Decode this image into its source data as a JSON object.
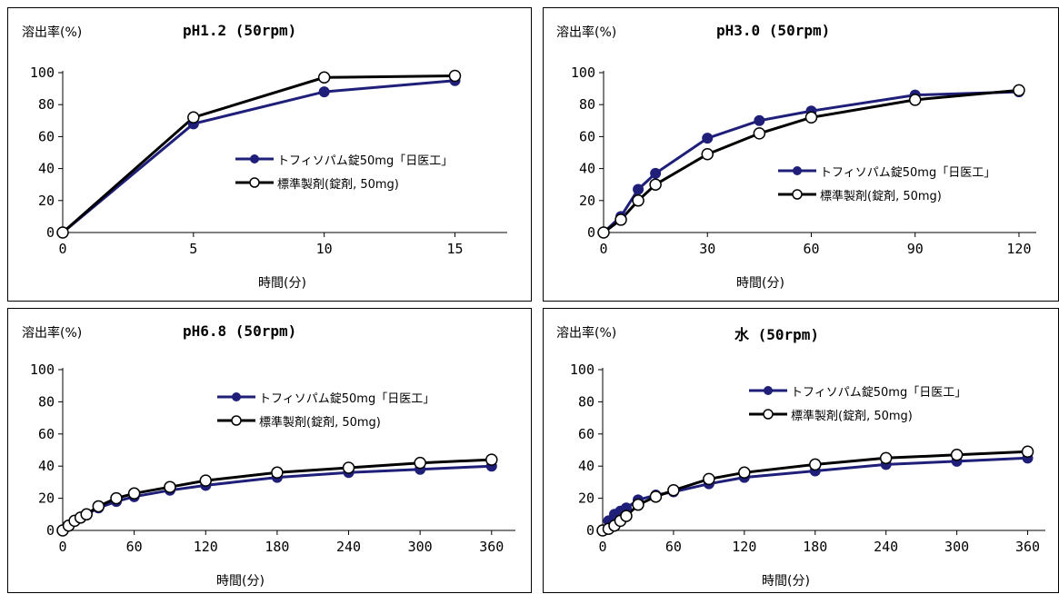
{
  "chart_data": [
    {
      "type": "line",
      "title": "pH1.2 (50rpm)",
      "ylabel": "溶出率(%)",
      "xlabel": "時間(分)",
      "xlim": [
        0,
        17
      ],
      "ylim": [
        0,
        100
      ],
      "xticks": [
        0,
        5,
        10,
        15
      ],
      "yticks": [
        0,
        20,
        40,
        60,
        80,
        100
      ],
      "series": [
        {
          "name": "トフィソパム錠50mg「日医工」",
          "color": "#1f1f7a",
          "marker": "filled",
          "x": [
            0,
            5,
            10,
            15
          ],
          "y": [
            0,
            68,
            88,
            95
          ]
        },
        {
          "name": "標準製剤(錠剤, 50mg)",
          "color": "#000000",
          "marker": "open",
          "x": [
            0,
            5,
            10,
            15
          ],
          "y": [
            0,
            72,
            97,
            98
          ]
        }
      ]
    },
    {
      "type": "line",
      "title": "pH3.0 (50rpm)",
      "ylabel": "溶出率(%)",
      "xlabel": "時間(分)",
      "xlim": [
        0,
        125
      ],
      "ylim": [
        0,
        100
      ],
      "xticks": [
        0,
        30,
        60,
        90,
        120
      ],
      "yticks": [
        0,
        20,
        40,
        60,
        80,
        100
      ],
      "series": [
        {
          "name": "トフィソパム錠50mg「日医工」",
          "color": "#1f1f7a",
          "marker": "filled",
          "x": [
            0,
            5,
            10,
            15,
            30,
            45,
            60,
            90,
            120
          ],
          "y": [
            0,
            10,
            27,
            37,
            59,
            70,
            76,
            86,
            88
          ]
        },
        {
          "name": "標準製剤(錠剤, 50mg)",
          "color": "#000000",
          "marker": "open",
          "x": [
            0,
            5,
            10,
            15,
            30,
            45,
            60,
            90,
            120
          ],
          "y": [
            0,
            8,
            20,
            30,
            49,
            62,
            72,
            83,
            89
          ]
        }
      ]
    },
    {
      "type": "line",
      "title": "pH6.8 (50rpm)",
      "ylabel": "溶出率(%)",
      "xlabel": "時間(分)",
      "xlim": [
        0,
        380
      ],
      "ylim": [
        0,
        100
      ],
      "xticks": [
        0,
        60,
        120,
        180,
        240,
        300,
        360
      ],
      "yticks": [
        0,
        20,
        40,
        60,
        80,
        100
      ],
      "series": [
        {
          "name": "トフィソパム錠50mg「日医工」",
          "color": "#1f1f7a",
          "marker": "filled",
          "x": [
            0,
            5,
            10,
            15,
            20,
            30,
            45,
            60,
            90,
            120,
            180,
            240,
            300,
            360
          ],
          "y": [
            0,
            3,
            6,
            8,
            10,
            14,
            18,
            21,
            25,
            28,
            33,
            36,
            38,
            40
          ]
        },
        {
          "name": "標準製剤(錠剤, 50mg)",
          "color": "#000000",
          "marker": "open",
          "x": [
            0,
            5,
            10,
            15,
            20,
            30,
            45,
            60,
            90,
            120,
            180,
            240,
            300,
            360
          ],
          "y": [
            0,
            3,
            6,
            8,
            10,
            15,
            20,
            23,
            27,
            31,
            36,
            39,
            42,
            44
          ]
        }
      ]
    },
    {
      "type": "line",
      "title": "水 (50rpm)",
      "ylabel": "溶出率(%)",
      "xlabel": "時間(分)",
      "xlim": [
        0,
        375
      ],
      "ylim": [
        0,
        100
      ],
      "xticks": [
        0,
        60,
        120,
        180,
        240,
        300,
        360
      ],
      "yticks": [
        0,
        20,
        40,
        60,
        80,
        100
      ],
      "series": [
        {
          "name": "トフィソパム錠50mg「日医工」",
          "color": "#1f1f7a",
          "marker": "filled",
          "x": [
            0,
            5,
            10,
            15,
            20,
            30,
            45,
            60,
            90,
            120,
            180,
            240,
            300,
            360
          ],
          "y": [
            0,
            6,
            10,
            12,
            14,
            19,
            22,
            24,
            29,
            33,
            37,
            41,
            43,
            45
          ]
        },
        {
          "name": "標準製剤(錠剤, 50mg)",
          "color": "#000000",
          "marker": "open",
          "x": [
            0,
            5,
            10,
            15,
            20,
            30,
            45,
            60,
            90,
            120,
            180,
            240,
            300,
            360
          ],
          "y": [
            0,
            1,
            3,
            6,
            9,
            16,
            21,
            25,
            32,
            36,
            41,
            45,
            47,
            49
          ]
        }
      ]
    }
  ]
}
